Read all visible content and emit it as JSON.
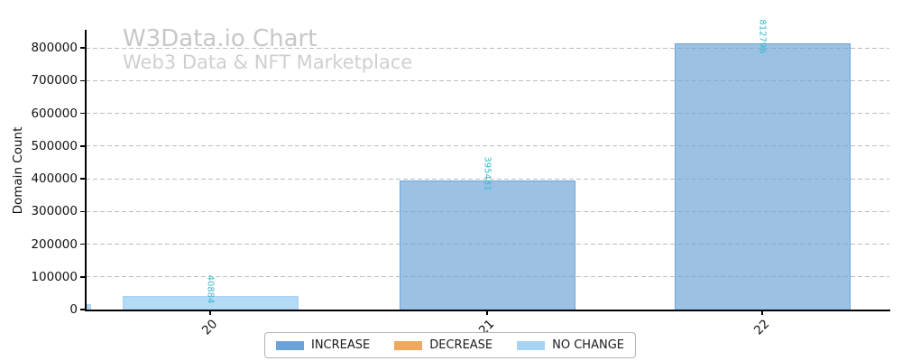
{
  "chart_data": {
    "type": "bar",
    "title": "W3Data.io Chart",
    "subtitle": "Web3 Data & NFT Marketplace",
    "xlabel": "",
    "ylabel": "Domain Count",
    "categories": [
      "20",
      "21",
      "22"
    ],
    "values": [
      40884,
      395481,
      812796
    ],
    "value_labels": [
      "40884",
      "395481",
      "812796"
    ],
    "bar_styles": [
      "no_change",
      "increase",
      "increase"
    ],
    "yticks": [
      0,
      100000,
      200000,
      300000,
      400000,
      500000,
      600000,
      700000,
      800000
    ],
    "ytick_labels": [
      "0",
      "100000",
      "200000",
      "300000",
      "400000",
      "500000",
      "600000",
      "700000",
      "800000"
    ],
    "ylim": [
      0,
      855000
    ],
    "grid": {
      "axis": "y",
      "style": "dashed",
      "color": "#bdbdbd"
    },
    "clipped_partial_bar_at_left": true,
    "legend": {
      "position": "bottom-center",
      "entries": [
        {
          "label": "INCREASE",
          "color": "#6ba3d8"
        },
        {
          "label": "DECREASE",
          "color": "#f0a860"
        },
        {
          "label": "NO CHANGE",
          "color": "#a6d2f3"
        }
      ]
    },
    "colors": {
      "value_label": "#35b8c8",
      "title": "#c7c7c7",
      "subtitle": "#cfcfcf",
      "axis": "#000000",
      "tick_label": "#1a1a1a",
      "grid": "#bdbdbd"
    }
  }
}
